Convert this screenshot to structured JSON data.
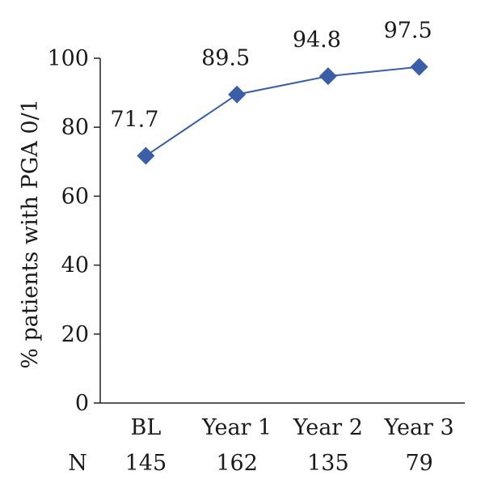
{
  "chart_data": {
    "type": "line",
    "categories": [
      "BL",
      "Year 1",
      "Year 2",
      "Year 3"
    ],
    "series": [
      {
        "values": [
          71.7,
          89.5,
          94.8,
          97.5
        ]
      }
    ],
    "data_labels": [
      "71.7",
      "89.5",
      "94.8",
      "97.5"
    ],
    "ylabel": "% patients with PGA 0/1",
    "ylim": [
      0,
      100
    ],
    "yticks": [
      0,
      20,
      40,
      60,
      80,
      100
    ],
    "n_row": {
      "label": "N",
      "values": [
        "145",
        "162",
        "135",
        "79"
      ]
    },
    "line_color": "#3a5fa8",
    "marker": "diamond",
    "grid": false
  }
}
